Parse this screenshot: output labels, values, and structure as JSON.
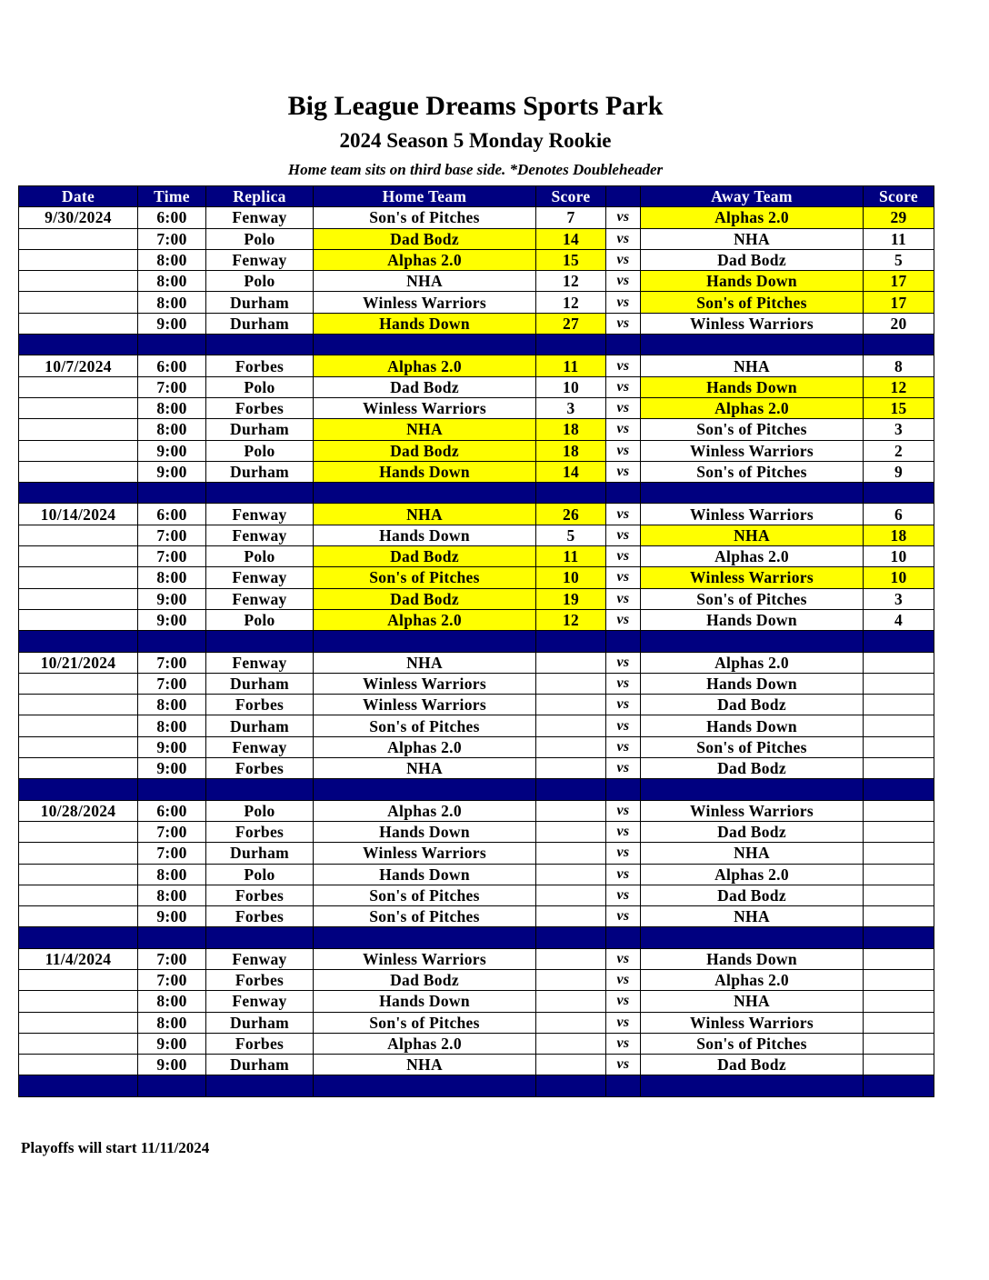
{
  "title": "Big League Dreams Sports Park",
  "subtitle": "2024 Season 5 Monday Rookie",
  "note": "Home team sits on third base side.  *Denotes Doubleheader",
  "footer": "Playoffs will start 11/11/2024",
  "highlight_color": "#ffff00",
  "header_color": "#000080",
  "columns": [
    "Date",
    "Time",
    "Replica",
    "Home Team",
    "Score",
    "",
    "Away Team",
    "Score"
  ],
  "vs_label": "vs",
  "weeks": [
    {
      "date": "9/30/2024",
      "games": [
        {
          "time": "6:00",
          "field": "Fenway",
          "home": "Son's of Pitches",
          "home_score": "7",
          "away": "Alphas 2.0",
          "away_score": "29",
          "winner": "away"
        },
        {
          "time": "7:00",
          "field": "Polo",
          "home": "Dad Bodz",
          "home_score": "14",
          "away": "NHA",
          "away_score": "11",
          "winner": "home"
        },
        {
          "time": "8:00",
          "field": "Fenway",
          "home": "Alphas 2.0",
          "home_score": "15",
          "away": "Dad Bodz",
          "away_score": "5",
          "winner": "home"
        },
        {
          "time": "8:00",
          "field": "Polo",
          "home": "NHA",
          "home_score": "12",
          "away": "Hands Down",
          "away_score": "17",
          "winner": "away"
        },
        {
          "time": "8:00",
          "field": "Durham",
          "home": "Winless Warriors",
          "home_score": "12",
          "away": "Son's of Pitches",
          "away_score": "17",
          "winner": "away"
        },
        {
          "time": "9:00",
          "field": "Durham",
          "home": "Hands Down",
          "home_score": "27",
          "away": "Winless Warriors",
          "away_score": "20",
          "winner": "home"
        }
      ]
    },
    {
      "date": "10/7/2024",
      "games": [
        {
          "time": "6:00",
          "field": "Forbes",
          "home": "Alphas 2.0",
          "home_score": "11",
          "away": "NHA",
          "away_score": "8",
          "winner": "home"
        },
        {
          "time": "7:00",
          "field": "Polo",
          "home": "Dad Bodz",
          "home_score": "10",
          "away": "Hands Down",
          "away_score": "12",
          "winner": "away"
        },
        {
          "time": "8:00",
          "field": "Forbes",
          "home": "Winless Warriors",
          "home_score": "3",
          "away": "Alphas 2.0",
          "away_score": "15",
          "winner": "away"
        },
        {
          "time": "8:00",
          "field": "Durham",
          "home": "NHA",
          "home_score": "18",
          "away": "Son's of Pitches",
          "away_score": "3",
          "winner": "home"
        },
        {
          "time": "9:00",
          "field": "Polo",
          "home": "Dad Bodz",
          "home_score": "18",
          "away": "Winless Warriors",
          "away_score": "2",
          "winner": "home"
        },
        {
          "time": "9:00",
          "field": "Durham",
          "home": "Hands Down",
          "home_score": "14",
          "away": "Son's of Pitches",
          "away_score": "9",
          "winner": "home"
        }
      ]
    },
    {
      "date": "10/14/2024",
      "games": [
        {
          "time": "6:00",
          "field": "Fenway",
          "home": "NHA",
          "home_score": "26",
          "away": "Winless Warriors",
          "away_score": "6",
          "winner": "home"
        },
        {
          "time": "7:00",
          "field": "Fenway",
          "home": "Hands Down",
          "home_score": "5",
          "away": "NHA",
          "away_score": "18",
          "winner": "away"
        },
        {
          "time": "7:00",
          "field": "Polo",
          "home": "Dad Bodz",
          "home_score": "11",
          "away": "Alphas 2.0",
          "away_score": "10",
          "winner": "home"
        },
        {
          "time": "8:00",
          "field": "Fenway",
          "home": "Son's of Pitches",
          "home_score": "10",
          "away": "Winless Warriors",
          "away_score": "10",
          "winner": "tie"
        },
        {
          "time": "9:00",
          "field": "Fenway",
          "home": "Dad Bodz",
          "home_score": "19",
          "away": "Son's of Pitches",
          "away_score": "3",
          "winner": "home"
        },
        {
          "time": "9:00",
          "field": "Polo",
          "home": "Alphas 2.0",
          "home_score": "12",
          "away": "Hands Down",
          "away_score": "4",
          "winner": "home"
        }
      ]
    },
    {
      "date": "10/21/2024",
      "games": [
        {
          "time": "7:00",
          "field": "Fenway",
          "home": "NHA",
          "home_score": "",
          "away": "Alphas 2.0",
          "away_score": "",
          "winner": ""
        },
        {
          "time": "7:00",
          "field": "Durham",
          "home": "Winless Warriors",
          "home_score": "",
          "away": "Hands Down",
          "away_score": "",
          "winner": ""
        },
        {
          "time": "8:00",
          "field": "Forbes",
          "home": "Winless Warriors",
          "home_score": "",
          "away": "Dad Bodz",
          "away_score": "",
          "winner": ""
        },
        {
          "time": "8:00",
          "field": "Durham",
          "home": "Son's of Pitches",
          "home_score": "",
          "away": "Hands Down",
          "away_score": "",
          "winner": ""
        },
        {
          "time": "9:00",
          "field": "Fenway",
          "home": "Alphas 2.0",
          "home_score": "",
          "away": "Son's of Pitches",
          "away_score": "",
          "winner": ""
        },
        {
          "time": "9:00",
          "field": "Forbes",
          "home": "NHA",
          "home_score": "",
          "away": "Dad Bodz",
          "away_score": "",
          "winner": ""
        }
      ]
    },
    {
      "date": "10/28/2024",
      "games": [
        {
          "time": "6:00",
          "field": "Polo",
          "home": "Alphas 2.0",
          "home_score": "",
          "away": "Winless Warriors",
          "away_score": "",
          "winner": ""
        },
        {
          "time": "7:00",
          "field": "Forbes",
          "home": "Hands Down",
          "home_score": "",
          "away": "Dad Bodz",
          "away_score": "",
          "winner": ""
        },
        {
          "time": "7:00",
          "field": "Durham",
          "home": "Winless Warriors",
          "home_score": "",
          "away": "NHA",
          "away_score": "",
          "winner": ""
        },
        {
          "time": "8:00",
          "field": "Polo",
          "home": "Hands Down",
          "home_score": "",
          "away": "Alphas 2.0",
          "away_score": "",
          "winner": ""
        },
        {
          "time": "8:00",
          "field": "Forbes",
          "home": "Son's of Pitches",
          "home_score": "",
          "away": "Dad Bodz",
          "away_score": "",
          "winner": ""
        },
        {
          "time": "9:00",
          "field": "Forbes",
          "home": "Son's of Pitches",
          "home_score": "",
          "away": "NHA",
          "away_score": "",
          "winner": ""
        }
      ]
    },
    {
      "date": "11/4/2024",
      "games": [
        {
          "time": "7:00",
          "field": "Fenway",
          "home": "Winless Warriors",
          "home_score": "",
          "away": "Hands Down",
          "away_score": "",
          "winner": ""
        },
        {
          "time": "7:00",
          "field": "Forbes",
          "home": "Dad Bodz",
          "home_score": "",
          "away": "Alphas 2.0",
          "away_score": "",
          "winner": ""
        },
        {
          "time": "8:00",
          "field": "Fenway",
          "home": "Hands Down",
          "home_score": "",
          "away": "NHA",
          "away_score": "",
          "winner": ""
        },
        {
          "time": "8:00",
          "field": "Durham",
          "home": "Son's of Pitches",
          "home_score": "",
          "away": "Winless Warriors",
          "away_score": "",
          "winner": ""
        },
        {
          "time": "9:00",
          "field": "Forbes",
          "home": "Alphas 2.0",
          "home_score": "",
          "away": "Son's of Pitches",
          "away_score": "",
          "winner": ""
        },
        {
          "time": "9:00",
          "field": "Durham",
          "home": "NHA",
          "home_score": "",
          "away": "Dad Bodz",
          "away_score": "",
          "winner": ""
        }
      ]
    }
  ]
}
